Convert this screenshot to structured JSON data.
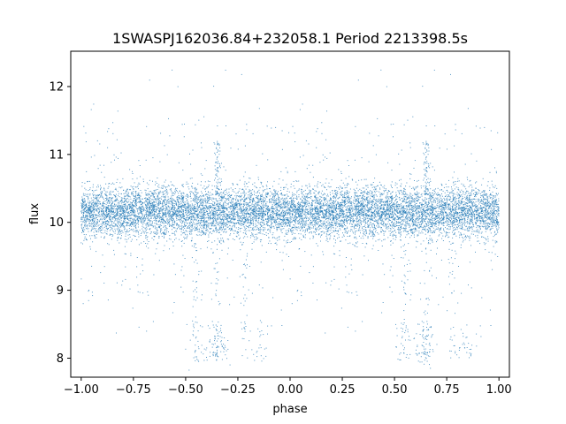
{
  "chart_data": {
    "type": "scatter",
    "title": "1SWASPJ162036.84+232058.1 Period 2213398.5s",
    "xlabel": "phase",
    "ylabel": "flux",
    "xlim": [
      -1.05,
      1.05
    ],
    "ylim": [
      7.72,
      12.52
    ],
    "xticks": [
      -1.0,
      -0.75,
      -0.5,
      -0.25,
      0.0,
      0.25,
      0.5,
      0.75,
      1.0
    ],
    "xtick_labels": [
      "−1.00",
      "−0.75",
      "−0.50",
      "−0.25",
      "0.00",
      "0.25",
      "0.50",
      "0.75",
      "1.00"
    ],
    "yticks": [
      8,
      9,
      10,
      11,
      12
    ],
    "ytick_labels": [
      "8",
      "9",
      "10",
      "11",
      "12"
    ],
    "grid": false,
    "point_color": "#1f77b4",
    "series": [
      {
        "points_description_free": true,
        "summary": {
          "phase_range": [
            -1.0,
            1.0
          ],
          "main_band_center": 10.15,
          "main_band_halfwidth": 0.3,
          "faint_clusters_phase": [
            -0.45,
            -0.35,
            -0.15,
            0.55,
            0.65,
            0.85
          ],
          "faint_clusters_flux": [
            7.95,
            8.5
          ]
        },
        "points": []
      }
    ]
  }
}
